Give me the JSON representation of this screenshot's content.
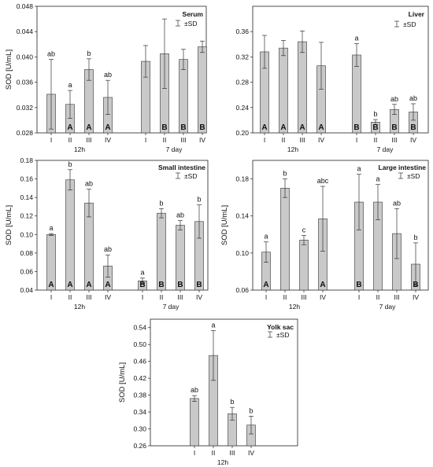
{
  "chart_data": [
    {
      "id": "serum",
      "type": "bar",
      "title": "Serum",
      "ylabel": "SOD [U/mL]",
      "legend": "±SD",
      "ylim": [
        0.028,
        0.048
      ],
      "yticks": [
        "0.028",
        "0.032",
        "0.036",
        "0.040",
        "0.044",
        "0.048"
      ],
      "groups": [
        {
          "label": "12h",
          "categories": [
            "I",
            "II",
            "III",
            "IV"
          ],
          "values": [
            0.0341,
            0.0325,
            0.038,
            0.0336
          ],
          "sd": [
            0.0055,
            0.0022,
            0.0017,
            0.0027
          ],
          "letters": [
            "ab",
            "a",
            "b",
            "ab"
          ],
          "uppercase": [
            "",
            "A",
            "A",
            "A"
          ]
        },
        {
          "label": "7 day",
          "categories": [
            "I",
            "II",
            "III",
            "IV"
          ],
          "values": [
            0.0393,
            0.0405,
            0.0396,
            0.0416
          ],
          "sd": [
            0.0025,
            0.0055,
            0.0016,
            0.0009
          ],
          "letters": [
            "",
            "",
            "",
            ""
          ],
          "uppercase": [
            "",
            "B",
            "B",
            "B"
          ]
        }
      ]
    },
    {
      "id": "liver",
      "type": "bar",
      "title": "Liver",
      "ylabel": "",
      "legend": "±SD",
      "ylim": [
        0.2,
        0.4
      ],
      "yticks": [
        "0.20",
        "0.24",
        "0.28",
        "0.32",
        "0.36"
      ],
      "groups": [
        {
          "label": "12h",
          "categories": [
            "I",
            "II",
            "III",
            "IV"
          ],
          "values": [
            0.328,
            0.334,
            0.344,
            0.306
          ],
          "sd": [
            0.026,
            0.012,
            0.017,
            0.037
          ],
          "letters": [
            "",
            "",
            "",
            ""
          ],
          "uppercase": [
            "A",
            "A",
            "A",
            "A"
          ]
        },
        {
          "label": "7 day",
          "categories": [
            "I",
            "II",
            "III",
            "IV"
          ],
          "values": [
            0.323,
            0.217,
            0.237,
            0.233
          ],
          "sd": [
            0.018,
            0.004,
            0.008,
            0.013
          ],
          "letters": [
            "a",
            "b",
            "ab",
            "ab"
          ],
          "uppercase": [
            "B",
            "B",
            "B",
            "B"
          ]
        }
      ]
    },
    {
      "id": "small-intestine",
      "type": "bar",
      "title": "Small intestine",
      "ylabel": "SOD [U/mL]",
      "legend": "±SD",
      "ylim": [
        0.04,
        0.18
      ],
      "yticks": [
        "0.04",
        "0.06",
        "0.08",
        "0.10",
        "0.12",
        "0.14",
        "0.16",
        "0.18"
      ],
      "groups": [
        {
          "label": "12h",
          "categories": [
            "I",
            "II",
            "III",
            "IV"
          ],
          "values": [
            0.1,
            0.159,
            0.134,
            0.066
          ],
          "sd": [
            0.001,
            0.011,
            0.015,
            0.012
          ],
          "letters": [
            "a",
            "b",
            "ab",
            "ab"
          ],
          "uppercase": [
            "A",
            "A",
            "A",
            "A"
          ]
        },
        {
          "label": "7 day",
          "categories": [
            "I",
            "II",
            "III",
            "IV"
          ],
          "values": [
            0.05,
            0.123,
            0.11,
            0.114
          ],
          "sd": [
            0.003,
            0.005,
            0.005,
            0.018
          ],
          "letters": [
            "a",
            "b",
            "ab",
            "b"
          ],
          "uppercase": [
            "B",
            "B",
            "B",
            "B"
          ]
        }
      ]
    },
    {
      "id": "large-intestine",
      "type": "bar",
      "title": "Large intestine",
      "ylabel": "SOD [U/mL]",
      "legend": "±SD",
      "ylim": [
        0.06,
        0.2
      ],
      "yticks": [
        "0.06",
        "0.10",
        "0.14",
        "0.18"
      ],
      "groups": [
        {
          "label": "12h",
          "categories": [
            "I",
            "II",
            "III",
            "IV"
          ],
          "values": [
            0.101,
            0.17,
            0.114,
            0.137
          ],
          "sd": [
            0.011,
            0.01,
            0.005,
            0.035
          ],
          "letters": [
            "a",
            "b",
            "c",
            "abc"
          ],
          "uppercase": [
            "A",
            "",
            "",
            "A"
          ]
        },
        {
          "label": "7 day",
          "categories": [
            "I",
            "II",
            "III",
            "IV"
          ],
          "values": [
            0.155,
            0.155,
            0.121,
            0.088
          ],
          "sd": [
            0.03,
            0.019,
            0.027,
            0.023
          ],
          "letters": [
            "a",
            "a",
            "ab",
            "b"
          ],
          "uppercase": [
            "B",
            "",
            "",
            "B"
          ]
        }
      ]
    },
    {
      "id": "yolk-sac",
      "type": "bar",
      "title": "Yolk sac",
      "ylabel": "SOD [U/mL]",
      "legend": "±SD",
      "ylim": [
        0.26,
        0.56
      ],
      "yticks": [
        "0.26",
        "0.30",
        "0.34",
        "0.38",
        "0.42",
        "0.46",
        "0.50",
        "0.54"
      ],
      "groups": [
        {
          "label": "12h",
          "categories": [
            "I",
            "II",
            "III",
            "IV"
          ],
          "values": [
            0.372,
            0.474,
            0.336,
            0.309
          ],
          "sd": [
            0.007,
            0.059,
            0.015,
            0.021
          ],
          "letters": [
            "ab",
            "a",
            "b",
            "b"
          ],
          "uppercase": [
            "",
            "",
            "",
            ""
          ]
        }
      ]
    }
  ]
}
